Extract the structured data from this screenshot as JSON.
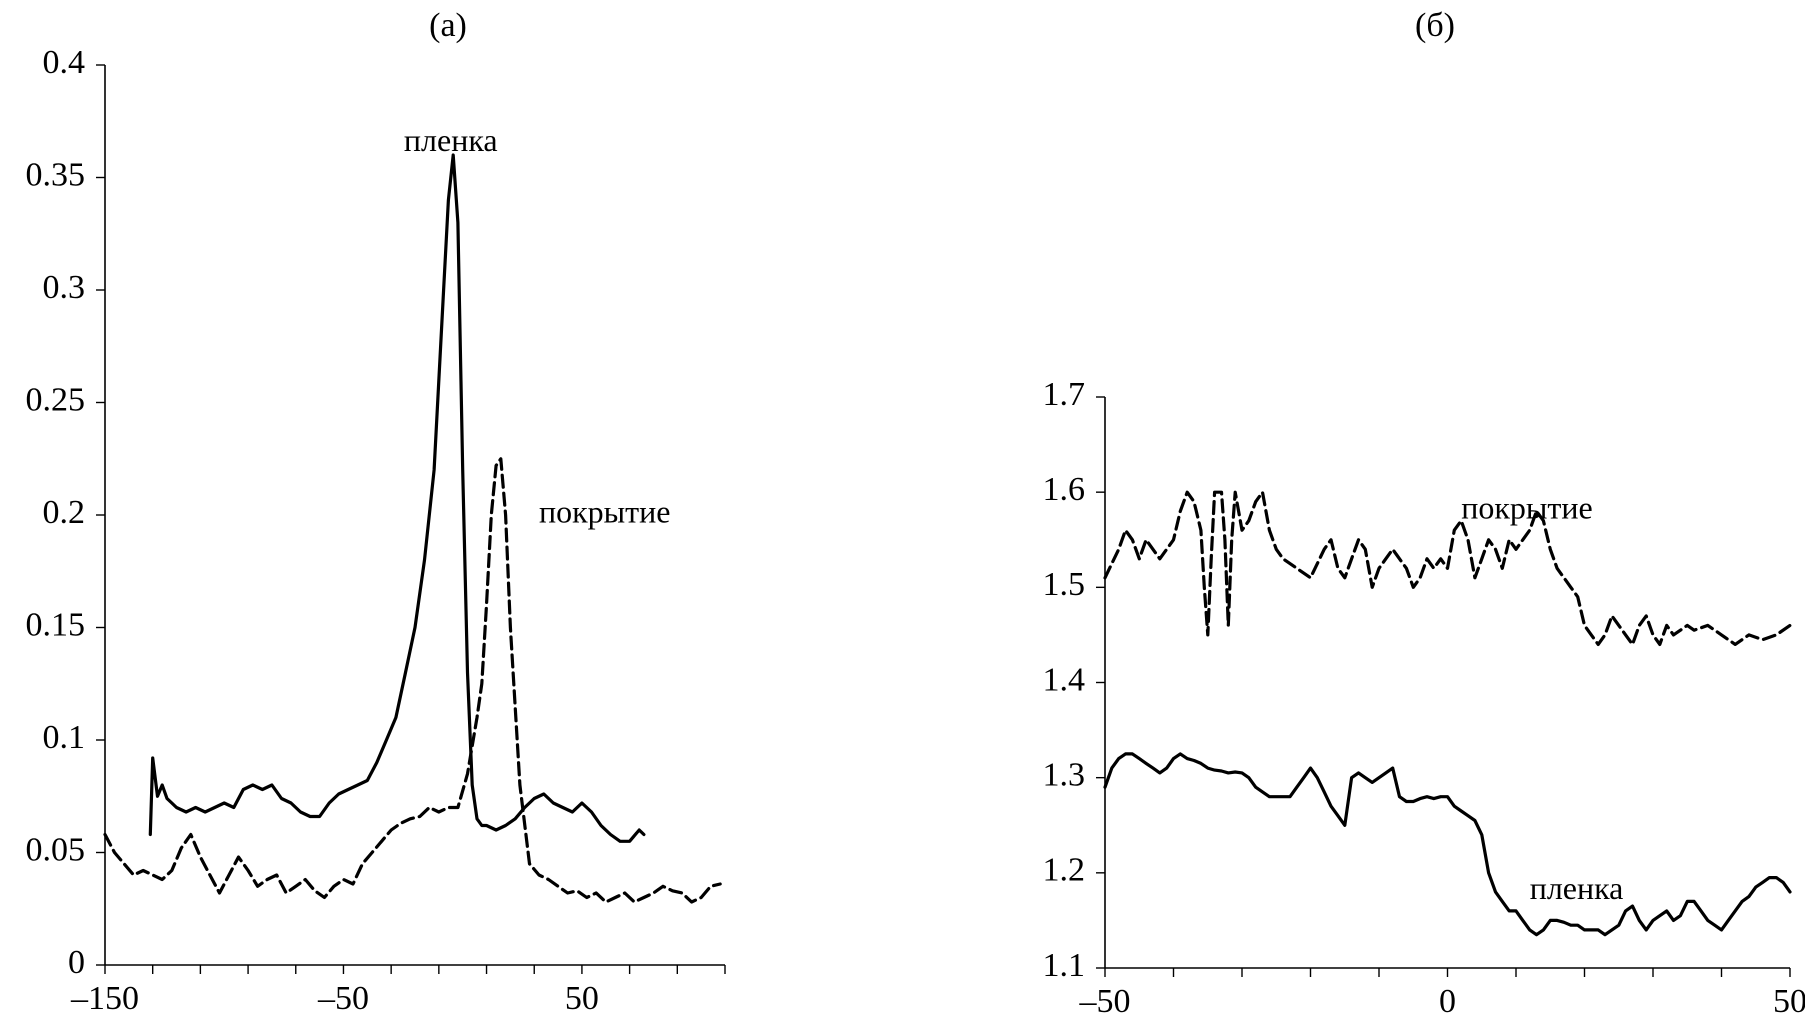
{
  "chart_data": [
    {
      "type": "line",
      "panel_label": "(а)",
      "title": "",
      "xlabel": "",
      "ylabel": "",
      "xlim": [
        -150,
        110
      ],
      "ylim": [
        0,
        0.4
      ],
      "x_ticks": [
        -150,
        -50,
        50
      ],
      "x_tick_labels": [
        "–150",
        "–50",
        "50"
      ],
      "x_minor_step": 20,
      "y_ticks": [
        0,
        0.05,
        0.1,
        0.15,
        0.2,
        0.25,
        0.3,
        0.35,
        0.4
      ],
      "y_tick_labels": [
        "0",
        "0.05",
        "0.1",
        "0.15",
        "0.2",
        "0.25",
        "0.3",
        "0.35",
        "0.4"
      ],
      "grid": false,
      "series": [
        {
          "name": "пленка",
          "style": "solid",
          "label_x": -5,
          "label_y": 0.365,
          "x": [
            -131,
            -130,
            -128,
            -126,
            -124,
            -122,
            -120,
            -116,
            -112,
            -108,
            -104,
            -100,
            -96,
            -92,
            -88,
            -84,
            -80,
            -76,
            -72,
            -68,
            -64,
            -60,
            -56,
            -52,
            -48,
            -44,
            -40,
            -36,
            -32,
            -28,
            -24,
            -20,
            -16,
            -12,
            -8,
            -6,
            -4,
            -2,
            0,
            2,
            4,
            6,
            8,
            10,
            14,
            18,
            22,
            26,
            30,
            34,
            38,
            42,
            46,
            50,
            54,
            58,
            62,
            66,
            70,
            74,
            76
          ],
          "y": [
            0.058,
            0.092,
            0.075,
            0.08,
            0.074,
            0.072,
            0.07,
            0.068,
            0.07,
            0.068,
            0.07,
            0.072,
            0.07,
            0.078,
            0.08,
            0.078,
            0.08,
            0.074,
            0.072,
            0.068,
            0.066,
            0.066,
            0.072,
            0.076,
            0.078,
            0.08,
            0.082,
            0.09,
            0.1,
            0.11,
            0.13,
            0.15,
            0.18,
            0.22,
            0.3,
            0.34,
            0.36,
            0.33,
            0.22,
            0.13,
            0.08,
            0.065,
            0.062,
            0.062,
            0.06,
            0.062,
            0.065,
            0.07,
            0.074,
            0.076,
            0.072,
            0.07,
            0.068,
            0.072,
            0.068,
            0.062,
            0.058,
            0.055,
            0.055,
            0.06,
            0.058
          ]
        },
        {
          "name": "покрытие",
          "style": "dashed",
          "label_x": 32,
          "label_y": 0.2,
          "x": [
            -150,
            -146,
            -142,
            -138,
            -134,
            -130,
            -126,
            -122,
            -118,
            -114,
            -110,
            -106,
            -102,
            -98,
            -94,
            -90,
            -86,
            -82,
            -78,
            -74,
            -70,
            -66,
            -62,
            -58,
            -54,
            -50,
            -46,
            -42,
            -38,
            -34,
            -30,
            -26,
            -22,
            -18,
            -14,
            -10,
            -6,
            -2,
            2,
            6,
            8,
            10,
            12,
            14,
            16,
            18,
            20,
            24,
            28,
            32,
            36,
            40,
            44,
            48,
            52,
            56,
            60,
            64,
            68,
            72,
            76,
            80,
            84,
            88,
            92,
            96,
            100,
            104,
            108
          ],
          "y": [
            0.058,
            0.05,
            0.045,
            0.04,
            0.042,
            0.04,
            0.038,
            0.042,
            0.052,
            0.058,
            0.048,
            0.04,
            0.032,
            0.04,
            0.048,
            0.042,
            0.035,
            0.038,
            0.04,
            0.032,
            0.035,
            0.038,
            0.033,
            0.03,
            0.035,
            0.038,
            0.036,
            0.045,
            0.05,
            0.055,
            0.06,
            0.063,
            0.065,
            0.066,
            0.07,
            0.068,
            0.07,
            0.07,
            0.085,
            0.11,
            0.125,
            0.16,
            0.2,
            0.222,
            0.225,
            0.2,
            0.15,
            0.08,
            0.045,
            0.04,
            0.038,
            0.035,
            0.032,
            0.033,
            0.03,
            0.032,
            0.028,
            0.03,
            0.032,
            0.028,
            0.03,
            0.032,
            0.035,
            0.033,
            0.032,
            0.028,
            0.03,
            0.035,
            0.036
          ]
        }
      ]
    },
    {
      "type": "line",
      "panel_label": "(б)",
      "title": "",
      "xlabel": "",
      "ylabel": "",
      "xlim": [
        -50,
        50
      ],
      "ylim": [
        1.1,
        1.7
      ],
      "x_ticks": [
        -50,
        0,
        50
      ],
      "x_tick_labels": [
        "–50",
        "0",
        "50"
      ],
      "x_minor_step": 10,
      "y_ticks": [
        1.1,
        1.2,
        1.3,
        1.4,
        1.5,
        1.6,
        1.7
      ],
      "y_tick_labels": [
        "1.1",
        "1.2",
        "1.3",
        "1.4",
        "1.5",
        "1.6",
        "1.7"
      ],
      "grid": false,
      "series": [
        {
          "name": "покрытие",
          "style": "dashed",
          "label_x": 2,
          "label_y": 1.58,
          "x": [
            -50,
            -48,
            -47,
            -46,
            -45,
            -44,
            -42,
            -40,
            -39,
            -38,
            -37,
            -36,
            -35.5,
            -35,
            -34.5,
            -34,
            -33,
            -32.5,
            -32,
            -31.5,
            -31,
            -30.5,
            -30,
            -29,
            -28,
            -27,
            -26,
            -25,
            -24,
            -22,
            -20,
            -18,
            -17,
            -16,
            -15,
            -14,
            -13,
            -12,
            -11,
            -10,
            -9,
            -8,
            -7,
            -6,
            -5,
            -4,
            -3,
            -2,
            -1,
            0,
            1,
            2,
            3,
            4,
            5,
            6,
            7,
            8,
            9,
            10,
            11,
            12,
            13,
            14,
            15,
            16,
            18,
            19,
            20,
            21,
            22,
            23,
            24,
            25,
            26,
            27,
            28,
            29,
            30,
            31,
            32,
            33,
            34,
            35,
            36,
            38,
            40,
            42,
            44,
            46,
            48,
            50
          ],
          "y": [
            1.51,
            1.54,
            1.56,
            1.55,
            1.53,
            1.55,
            1.53,
            1.55,
            1.58,
            1.6,
            1.59,
            1.56,
            1.5,
            1.45,
            1.53,
            1.6,
            1.6,
            1.55,
            1.46,
            1.55,
            1.6,
            1.58,
            1.56,
            1.57,
            1.59,
            1.6,
            1.56,
            1.54,
            1.53,
            1.52,
            1.51,
            1.54,
            1.55,
            1.52,
            1.51,
            1.53,
            1.55,
            1.54,
            1.5,
            1.52,
            1.53,
            1.54,
            1.53,
            1.52,
            1.5,
            1.51,
            1.53,
            1.52,
            1.53,
            1.52,
            1.56,
            1.57,
            1.55,
            1.51,
            1.53,
            1.55,
            1.54,
            1.52,
            1.55,
            1.54,
            1.55,
            1.56,
            1.58,
            1.57,
            1.54,
            1.52,
            1.5,
            1.49,
            1.46,
            1.45,
            1.44,
            1.45,
            1.47,
            1.46,
            1.45,
            1.44,
            1.46,
            1.47,
            1.45,
            1.44,
            1.46,
            1.45,
            1.455,
            1.46,
            1.455,
            1.46,
            1.45,
            1.44,
            1.45,
            1.445,
            1.45,
            1.46
          ]
        },
        {
          "name": "пленка",
          "style": "solid",
          "label_x": 12,
          "label_y": 1.18,
          "x": [
            -50,
            -49,
            -48,
            -47,
            -46,
            -45,
            -44,
            -43,
            -42,
            -41,
            -40,
            -39,
            -38,
            -37,
            -36,
            -35,
            -34,
            -33,
            -32,
            -31,
            -30,
            -29,
            -28,
            -27,
            -26,
            -25,
            -24,
            -23,
            -22,
            -21,
            -20,
            -19,
            -18,
            -17,
            -16,
            -15,
            -14,
            -13,
            -12,
            -11,
            -10,
            -9,
            -8,
            -7,
            -6,
            -5,
            -4,
            -3,
            -2,
            -1,
            0,
            1,
            2,
            3,
            4,
            5,
            6,
            7,
            8,
            9,
            10,
            11,
            12,
            13,
            14,
            15,
            16,
            17,
            18,
            19,
            20,
            21,
            22,
            23,
            24,
            25,
            26,
            27,
            28,
            29,
            30,
            31,
            32,
            33,
            34,
            35,
            36,
            37,
            38,
            39,
            40,
            41,
            42,
            43,
            44,
            45,
            46,
            47,
            48,
            49,
            50
          ],
          "y": [
            1.29,
            1.31,
            1.32,
            1.325,
            1.325,
            1.32,
            1.315,
            1.31,
            1.305,
            1.31,
            1.32,
            1.325,
            1.32,
            1.318,
            1.315,
            1.31,
            1.308,
            1.307,
            1.305,
            1.306,
            1.305,
            1.3,
            1.29,
            1.285,
            1.28,
            1.28,
            1.28,
            1.28,
            1.29,
            1.3,
            1.31,
            1.3,
            1.285,
            1.27,
            1.26,
            1.25,
            1.3,
            1.305,
            1.3,
            1.295,
            1.3,
            1.305,
            1.31,
            1.28,
            1.275,
            1.275,
            1.278,
            1.28,
            1.278,
            1.28,
            1.28,
            1.27,
            1.265,
            1.26,
            1.255,
            1.24,
            1.2,
            1.18,
            1.17,
            1.16,
            1.16,
            1.15,
            1.14,
            1.135,
            1.14,
            1.15,
            1.15,
            1.148,
            1.145,
            1.145,
            1.14,
            1.14,
            1.14,
            1.135,
            1.14,
            1.145,
            1.16,
            1.165,
            1.15,
            1.14,
            1.15,
            1.155,
            1.16,
            1.15,
            1.155,
            1.17,
            1.17,
            1.16,
            1.15,
            1.145,
            1.14,
            1.15,
            1.16,
            1.17,
            1.175,
            1.185,
            1.19,
            1.195,
            1.195,
            1.19,
            1.18
          ]
        }
      ]
    }
  ]
}
